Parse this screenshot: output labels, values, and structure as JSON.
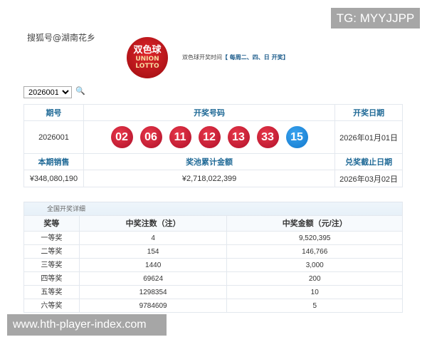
{
  "watermarks": {
    "top": "TG: MYYJJPP",
    "bottom": "www.hth-player-index.com"
  },
  "source": "搜狐号@湖南花乡",
  "logo": {
    "line1": "双色球",
    "line2": "UNION",
    "line3": "LOTTO"
  },
  "draw_time": {
    "label": "双色球开奖时间",
    "schedule": "【 每周二、四、日 开奖】"
  },
  "issue_select": {
    "value": "2026001"
  },
  "icons": {
    "search": "search-icon"
  },
  "colors": {
    "red_ball": "#c8163a",
    "blue_ball": "#1a8ae0",
    "header_text": "#1f6996"
  },
  "summary": {
    "headers": [
      "期号",
      "开奖号码",
      "开奖日期"
    ],
    "issue": "2026001",
    "red_balls": [
      "02",
      "06",
      "11",
      "12",
      "13",
      "33"
    ],
    "blue_ball": "15",
    "draw_date": "2026年01月01日",
    "headers2": [
      "本期销售",
      "奖池累计金额",
      "兑奖截止日期"
    ],
    "sales": "¥348,080,190",
    "pool": "¥2,718,022,399",
    "deadline": "2026年03月02日"
  },
  "details": {
    "caption": "全国开奖详细",
    "headers": [
      "奖等",
      "中奖注数（注）",
      "中奖金额（元/注）"
    ],
    "rows": [
      [
        "一等奖",
        "4",
        "9,520,395"
      ],
      [
        "二等奖",
        "154",
        "146,766"
      ],
      [
        "三等奖",
        "1440",
        "3,000"
      ],
      [
        "四等奖",
        "69624",
        "200"
      ],
      [
        "五等奖",
        "1298354",
        "10"
      ],
      [
        "六等奖",
        "9784609",
        "5"
      ]
    ]
  }
}
